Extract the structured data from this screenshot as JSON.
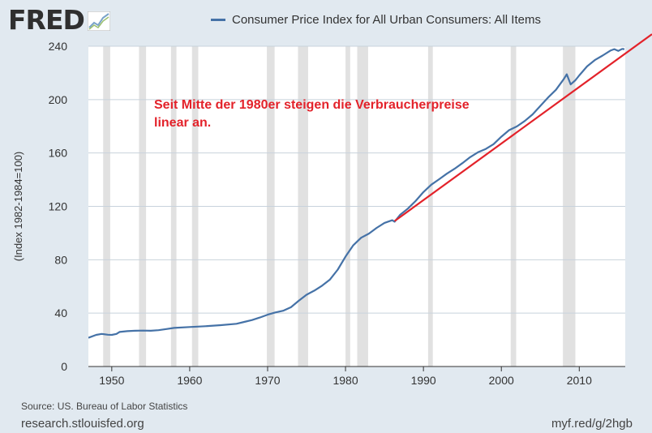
{
  "header": {
    "logo_text": "FRED",
    "logo_icon": "line-chart-icon"
  },
  "legend": {
    "label": "Consumer Price Index for All Urban Consumers: All Items",
    "color": "#4572a7"
  },
  "footer": {
    "source": "Source: US. Bureau of Labor Statistics",
    "site": "research.stlouisfed.org",
    "short_link": "myf.red/g/2hgb"
  },
  "chart_data": {
    "type": "line",
    "ylabel": "(Index 1982-1984=100)",
    "xlim": [
      1947,
      2015.9
    ],
    "ylim": [
      0,
      240
    ],
    "x_ticks": [
      1950,
      1960,
      1970,
      1980,
      1990,
      2000,
      2010
    ],
    "y_ticks": [
      0,
      40,
      80,
      120,
      160,
      200,
      240
    ],
    "grid": true,
    "recessions": [
      [
        1948.9,
        1949.8
      ],
      [
        1953.5,
        1954.4
      ],
      [
        1957.6,
        1958.3
      ],
      [
        1960.3,
        1961.1
      ],
      [
        1969.9,
        1970.9
      ],
      [
        1973.9,
        1975.2
      ],
      [
        1980.0,
        1980.6
      ],
      [
        1981.5,
        1982.9
      ],
      [
        1990.6,
        1991.2
      ],
      [
        2001.2,
        2001.9
      ],
      [
        2007.9,
        2009.5
      ]
    ],
    "series": [
      {
        "name": "Consumer Price Index for All Urban Consumers: All Items",
        "color": "#4572a7",
        "x": [
          1947.0,
          1948.0,
          1948.7,
          1949.5,
          1950.0,
          1950.6,
          1951.0,
          1952.0,
          1953.0,
          1954.0,
          1955.0,
          1956.0,
          1957.0,
          1958.0,
          1960.0,
          1962.0,
          1964.0,
          1966.0,
          1967.0,
          1968.0,
          1969.0,
          1970.0,
          1971.0,
          1972.0,
          1973.0,
          1974.0,
          1975.0,
          1976.0,
          1977.0,
          1978.0,
          1979.0,
          1980.0,
          1981.0,
          1982.0,
          1983.0,
          1984.0,
          1985.0,
          1986.0,
          1986.3,
          1987.0,
          1988.0,
          1989.0,
          1990.0,
          1991.0,
          1992.0,
          1993.0,
          1994.0,
          1995.0,
          1996.0,
          1997.0,
          1998.0,
          1999.0,
          2000.0,
          2001.0,
          2002.0,
          2003.0,
          2004.0,
          2005.0,
          2006.0,
          2007.0,
          2008.0,
          2008.4,
          2008.9,
          2009.5,
          2010.0,
          2011.0,
          2012.0,
          2013.0,
          2014.0,
          2014.5,
          2015.0,
          2015.5,
          2015.8
        ],
        "values": [
          21.5,
          23.7,
          24.4,
          23.8,
          23.7,
          24.4,
          25.9,
          26.5,
          26.8,
          26.9,
          26.8,
          27.2,
          28.1,
          28.9,
          29.6,
          30.2,
          31.0,
          32.0,
          33.4,
          34.8,
          36.7,
          38.8,
          40.5,
          41.8,
          44.4,
          49.3,
          53.8,
          56.9,
          60.6,
          65.2,
          72.6,
          82.4,
          90.9,
          96.5,
          99.6,
          103.9,
          107.6,
          109.6,
          108.5,
          113.6,
          118.3,
          124.0,
          130.7,
          136.2,
          140.3,
          144.5,
          148.2,
          152.4,
          156.9,
          160.5,
          163.0,
          166.6,
          172.2,
          177.1,
          179.9,
          184.0,
          188.9,
          195.3,
          201.6,
          207.3,
          215.3,
          219.0,
          211.4,
          214.5,
          218.1,
          224.9,
          229.6,
          233.0,
          236.7,
          237.8,
          236.5,
          238.0,
          237.8
        ]
      }
    ],
    "trend_line": {
      "color": "#e3222a",
      "x": [
        1986.3,
        2015.9
      ],
      "values": [
        109.0,
        234.5
      ]
    },
    "annotation": {
      "text_line1": "Seit Mitte der 1980er steigen die Verbraucherpreise",
      "text_line2": "linear an.",
      "color": "#e3222a"
    }
  }
}
